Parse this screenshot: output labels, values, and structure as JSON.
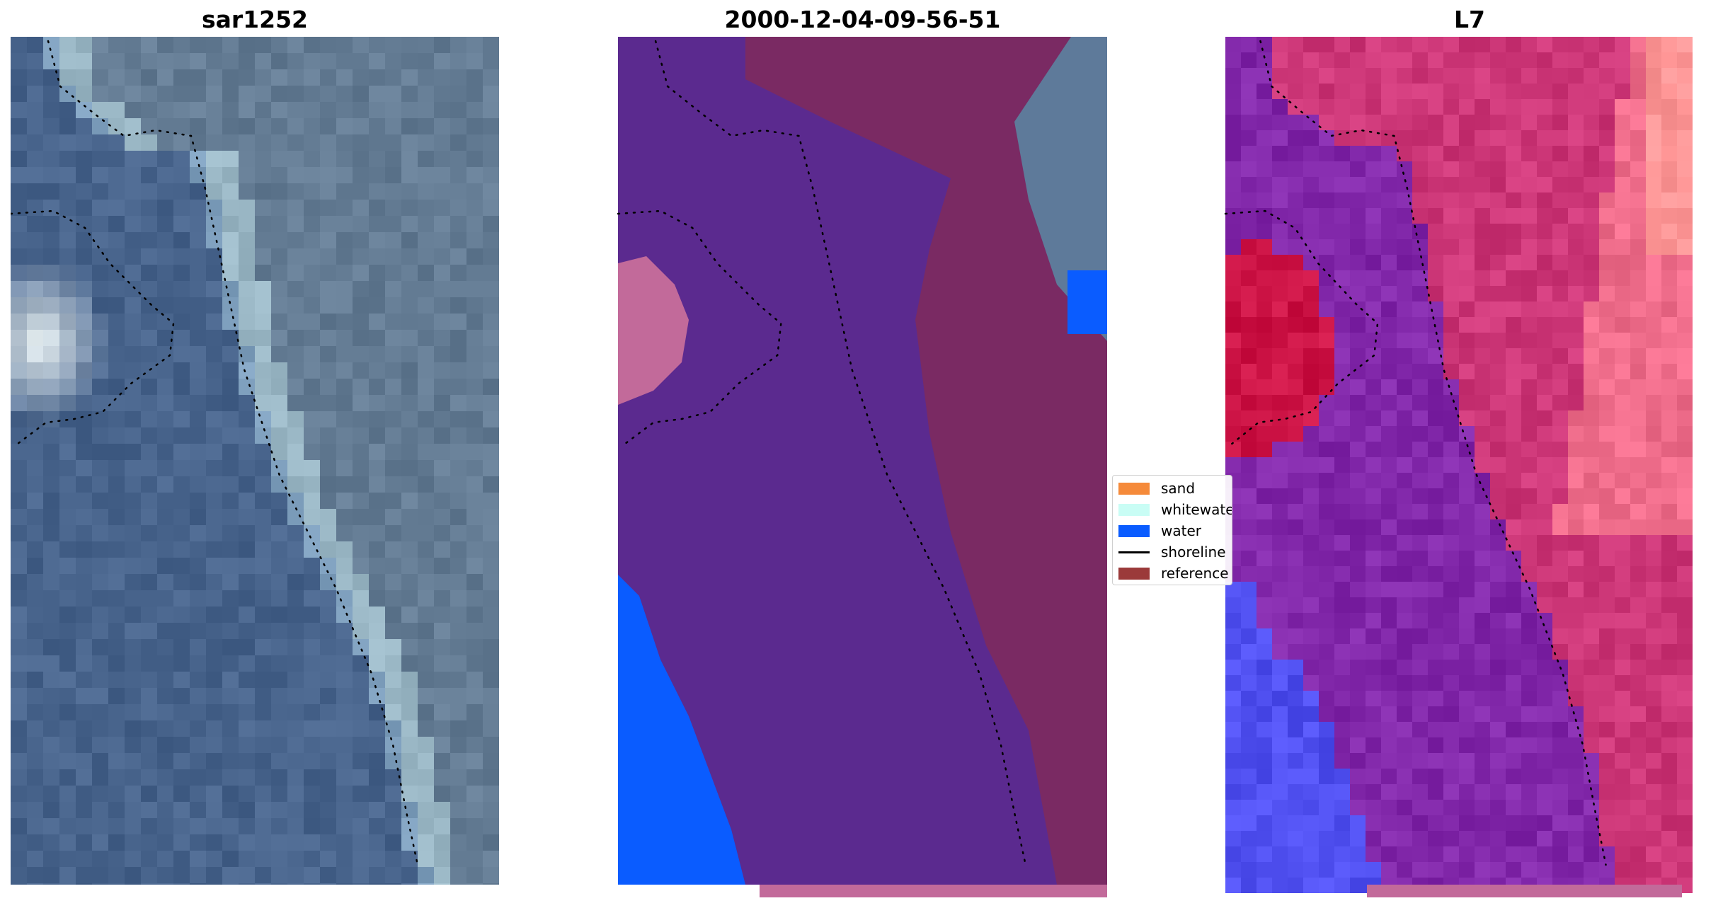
{
  "panels": [
    {
      "title": "sar1252",
      "style": "rgb"
    },
    {
      "title": "2000-12-04-09-56-51",
      "style": "classified"
    },
    {
      "title": "L7",
      "style": "index"
    }
  ],
  "legend": {
    "items": [
      {
        "label": "sand",
        "color": "#f58a3a",
        "kind": "patch"
      },
      {
        "label": "whitewater",
        "color": "#c9fdf5",
        "kind": "patch"
      },
      {
        "label": "water",
        "color": "#0a5cff",
        "kind": "patch"
      },
      {
        "label": "shoreline",
        "color": "#000000",
        "kind": "line"
      },
      {
        "label": "reference",
        "color": "#9b3a3a",
        "kind": "patch"
      }
    ]
  },
  "colors": {
    "rgb_base": "#4c6a96",
    "rgb_bright": "#f4f6fa",
    "classified_land": "#5b2a8f",
    "classified_ref": "#7a2a63",
    "classified_water": "#0a5cff",
    "classified_pink": "#c26a9a",
    "index_low": "#1a1aff",
    "index_mid": "#8c2ea8",
    "index_high": "#d6184c",
    "index_light": "#ff8a8a"
  }
}
